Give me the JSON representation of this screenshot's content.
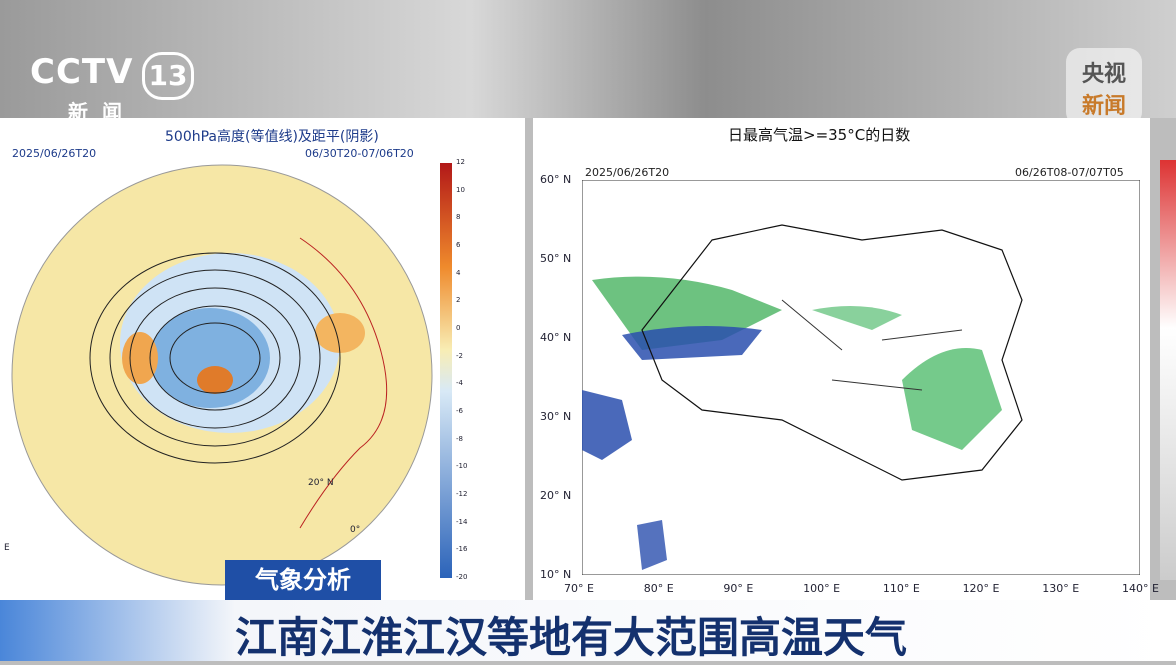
{
  "logos": {
    "cctv": "CCTV",
    "channel": "13",
    "channel_name": "新闻",
    "app_top": "央视",
    "app_bottom": "新闻"
  },
  "left_panel": {
    "title": "500hPa高度(等值线)及距平(阴影)",
    "init_time": "2025/06/26T20",
    "valid_period": "06/30T20-07/06T20",
    "colorbar_ticks": [
      "12",
      "10",
      "8",
      "6",
      "4",
      "2",
      "0",
      "-2",
      "-4",
      "-6",
      "-8",
      "-10",
      "-12",
      "-14",
      "-16",
      "-20"
    ],
    "map_labels": [
      "20° N",
      "0°",
      "E"
    ]
  },
  "right_panel": {
    "title": "日最高气温>=35°C的日数",
    "init_time": "2025/06/26T20",
    "valid_period": "06/26T08-07/07T05",
    "lat_labels": [
      "60° N",
      "50° N",
      "40° N",
      "30° N",
      "20° N",
      "10° N"
    ],
    "lon_labels": [
      "70° E",
      "80° E",
      "90° E",
      "100° E",
      "110° E",
      "120° E",
      "130° E",
      "140° E"
    ]
  },
  "caption": {
    "tag": "气象分析",
    "headline": "江南江淮江汉等地有大范围高温天气"
  }
}
